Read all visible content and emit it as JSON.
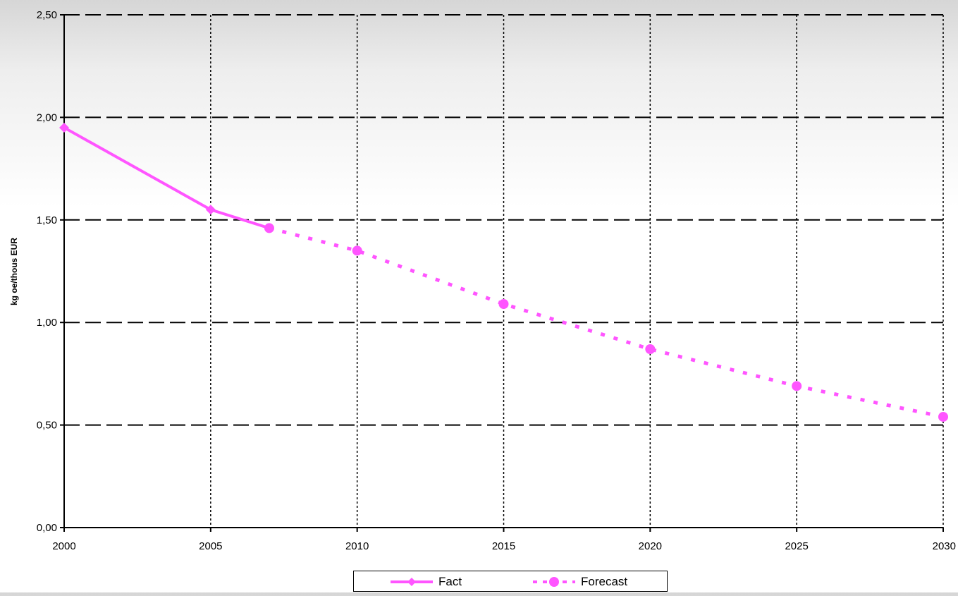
{
  "chart_data": {
    "type": "line",
    "title": "",
    "xlabel": "",
    "ylabel": "kg oe/thous EUR",
    "xlim": [
      2000,
      2030
    ],
    "ylim": [
      0,
      2.5
    ],
    "x_ticks": [
      "2000",
      "2005",
      "2010",
      "2015",
      "2020",
      "2025",
      "2030"
    ],
    "y_ticks": [
      "0,00",
      "0,50",
      "1,00",
      "1,50",
      "2,00",
      "2,50"
    ],
    "grid": {
      "horizontal": "dashed",
      "vertical": "dotted"
    },
    "legend_position": "bottom",
    "series": [
      {
        "name": "Fact",
        "style": "solid",
        "color": "#ff55ff",
        "x": [
          2000,
          2005,
          2007
        ],
        "y": [
          1.95,
          1.55,
          1.46
        ]
      },
      {
        "name": "Forecast",
        "style": "dotted",
        "color": "#ff55ff",
        "x": [
          2007,
          2010,
          2015,
          2020,
          2025,
          2030
        ],
        "y": [
          1.46,
          1.35,
          1.09,
          0.87,
          0.69,
          0.54
        ]
      }
    ]
  }
}
